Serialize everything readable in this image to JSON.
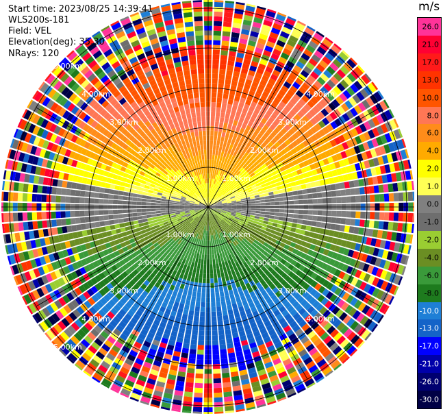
{
  "info": {
    "start_time": "Start time: 2023/08/25 14:39:41",
    "instrument": "WLS200s-181",
    "field": "Field: VEL",
    "elevation": "Elevation(deg): 35.30",
    "nrays": "NRays: 120"
  },
  "colorbar": {
    "unit": "m/s",
    "levels": [
      "26.0",
      "21.0",
      "17.0",
      "13.0",
      "10.0",
      "8.0",
      "6.0",
      "4.0",
      "2.0",
      "1.0",
      "0.0",
      "-1.0",
      "-2.0",
      "-4.0",
      "-6.0",
      "-8.0",
      "-10.0",
      "-13.0",
      "-17.0",
      "-21.0",
      "-26.0",
      "-30.0"
    ],
    "colors": [
      "#ff3399",
      "#ff0033",
      "#ff1a1a",
      "#ff3300",
      "#ff5500",
      "#ff7755",
      "#ff8c1a",
      "#ffaa00",
      "#ffff00",
      "#ffff55",
      "#808080",
      "#6e6e6e",
      "#9acd32",
      "#6b8e23",
      "#3a9a3a",
      "#1e7b1e",
      "#1e7fd6",
      "#1463c8",
      "#0000ff",
      "#0000aa",
      "#000070",
      "#000045"
    ]
  },
  "chart_data": {
    "type": "heatmap",
    "projection": "polar",
    "title": "",
    "field": "VEL",
    "unit": "m/s",
    "n_rays": 120,
    "elevation_deg": 35.3,
    "range_rings_km": [
      1.0,
      2.0,
      3.0,
      4.0,
      5.0
    ],
    "ring_labels": [
      "1.00km",
      "2.00km",
      "3.00km",
      "4.00km",
      "5.00km"
    ],
    "color_scale": {
      "min": -30.0,
      "max": 26.0
    },
    "pattern": {
      "near_range_km": [
        0,
        4.0
      ],
      "north_velocity_ms": 8.0,
      "east_west_velocity_ms": 0.0,
      "south_velocity_ms": -8.0,
      "far_range_noise_km": [
        4.0,
        6.0
      ]
    }
  }
}
